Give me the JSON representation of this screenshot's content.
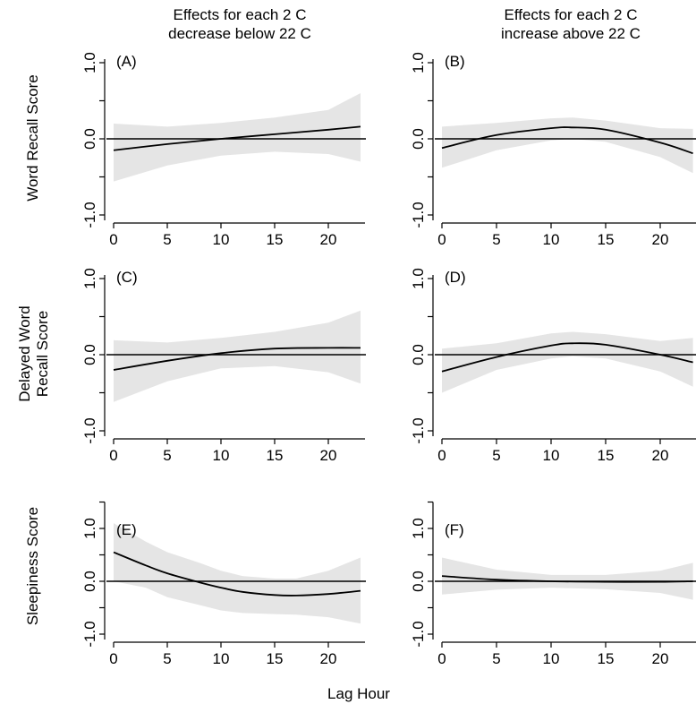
{
  "figure": {
    "column_titles": [
      "Effects for each 2 C\ndecrease below 22 C",
      "Effects for each 2 C\nincrease above 22 C"
    ],
    "row_labels": [
      [
        "Word Recall Score"
      ],
      [
        "Delayed Word",
        "Recall Score"
      ],
      [
        "Sleepiness Score"
      ]
    ],
    "x_axis_label": "Lag Hour"
  },
  "chart_data": [
    {
      "type": "line",
      "panel_label": "(A)",
      "x": [
        0,
        5,
        10,
        15,
        20,
        23
      ],
      "series": [
        {
          "role": "estimate",
          "values": [
            -0.15,
            -0.07,
            0.0,
            0.06,
            0.12,
            0.16
          ]
        },
        {
          "role": "ci_lower",
          "values": [
            -0.56,
            -0.35,
            -0.22,
            -0.17,
            -0.2,
            -0.3
          ]
        },
        {
          "role": "ci_upper",
          "values": [
            0.2,
            0.16,
            0.21,
            0.28,
            0.38,
            0.6
          ]
        }
      ],
      "x_ticks": [
        "0",
        "5",
        "10",
        "15",
        "20"
      ],
      "y_ticks": [
        "-1.0",
        "0.0",
        "1.0"
      ],
      "xlim": [
        0,
        23
      ],
      "ylim": [
        -1.0,
        1.0
      ],
      "reference_line": 0
    },
    {
      "type": "line",
      "panel_label": "(B)",
      "x": [
        0,
        5,
        10,
        12,
        15,
        20,
        23
      ],
      "series": [
        {
          "role": "estimate",
          "values": [
            -0.12,
            0.05,
            0.14,
            0.15,
            0.12,
            -0.05,
            -0.19
          ]
        },
        {
          "role": "ci_lower",
          "values": [
            -0.38,
            -0.15,
            -0.02,
            0.0,
            -0.04,
            -0.24,
            -0.45
          ]
        },
        {
          "role": "ci_upper",
          "values": [
            0.16,
            0.21,
            0.27,
            0.28,
            0.24,
            0.14,
            0.13
          ]
        }
      ],
      "x_ticks": [
        "0",
        "5",
        "10",
        "15",
        "20"
      ],
      "y_ticks": [
        "-1.0",
        "0.0",
        "1.0"
      ],
      "xlim": [
        0,
        23
      ],
      "ylim": [
        -1.0,
        1.0
      ],
      "reference_line": 0
    },
    {
      "type": "line",
      "panel_label": "(C)",
      "x": [
        0,
        5,
        10,
        15,
        20,
        23
      ],
      "series": [
        {
          "role": "estimate",
          "values": [
            -0.2,
            -0.08,
            0.02,
            0.08,
            0.09,
            0.09
          ]
        },
        {
          "role": "ci_lower",
          "values": [
            -0.62,
            -0.35,
            -0.18,
            -0.15,
            -0.23,
            -0.38
          ]
        },
        {
          "role": "ci_upper",
          "values": [
            0.19,
            0.16,
            0.22,
            0.3,
            0.42,
            0.58
          ]
        }
      ],
      "x_ticks": [
        "0",
        "5",
        "10",
        "15",
        "20"
      ],
      "y_ticks": [
        "-1.0",
        "0.0",
        "1.0"
      ],
      "xlim": [
        0,
        23
      ],
      "ylim": [
        -1.0,
        1.0
      ],
      "reference_line": 0
    },
    {
      "type": "line",
      "panel_label": "(D)",
      "x": [
        0,
        5,
        10,
        12,
        15,
        20,
        23
      ],
      "series": [
        {
          "role": "estimate",
          "values": [
            -0.22,
            -0.03,
            0.12,
            0.15,
            0.13,
            0.0,
            -0.1
          ]
        },
        {
          "role": "ci_lower",
          "values": [
            -0.5,
            -0.2,
            -0.05,
            -0.02,
            -0.05,
            -0.22,
            -0.42
          ]
        },
        {
          "role": "ci_upper",
          "values": [
            0.08,
            0.15,
            0.28,
            0.3,
            0.27,
            0.18,
            0.22
          ]
        }
      ],
      "x_ticks": [
        "0",
        "5",
        "10",
        "15",
        "20"
      ],
      "y_ticks": [
        "-1.0",
        "0.0",
        "1.0"
      ],
      "xlim": [
        0,
        23
      ],
      "ylim": [
        -1.0,
        1.0
      ],
      "reference_line": 0
    },
    {
      "type": "line",
      "panel_label": "(E)",
      "x": [
        0,
        3,
        5,
        8,
        10,
        12,
        15,
        17,
        20,
        23
      ],
      "series": [
        {
          "role": "estimate",
          "values": [
            0.55,
            0.3,
            0.15,
            -0.02,
            -0.12,
            -0.2,
            -0.26,
            -0.27,
            -0.24,
            -0.18
          ]
        },
        {
          "role": "ci_lower",
          "values": [
            0.0,
            -0.12,
            -0.3,
            -0.45,
            -0.55,
            -0.6,
            -0.62,
            -0.63,
            -0.68,
            -0.8
          ]
        },
        {
          "role": "ci_upper",
          "values": [
            1.1,
            0.75,
            0.55,
            0.35,
            0.2,
            0.1,
            0.05,
            0.05,
            0.2,
            0.45
          ]
        }
      ],
      "x_ticks": [
        "0",
        "5",
        "10",
        "15",
        "20"
      ],
      "y_ticks": [
        "-1.0",
        "0.0",
        "1.0"
      ],
      "xlim": [
        0,
        23
      ],
      "ylim": [
        -1.0,
        1.5
      ],
      "reference_line": 0
    },
    {
      "type": "line",
      "panel_label": "(F)",
      "x": [
        0,
        5,
        10,
        15,
        20,
        23
      ],
      "series": [
        {
          "role": "estimate",
          "values": [
            0.1,
            0.03,
            0.0,
            -0.01,
            -0.01,
            0.0
          ]
        },
        {
          "role": "ci_lower",
          "values": [
            -0.25,
            -0.16,
            -0.12,
            -0.15,
            -0.22,
            -0.35
          ]
        },
        {
          "role": "ci_upper",
          "values": [
            0.45,
            0.22,
            0.12,
            0.12,
            0.2,
            0.35
          ]
        }
      ],
      "x_ticks": [
        "0",
        "5",
        "10",
        "15",
        "20"
      ],
      "y_ticks": [
        "-1.0",
        "0.0",
        "1.0"
      ],
      "xlim": [
        0,
        23
      ],
      "ylim": [
        -1.0,
        1.5
      ],
      "reference_line": 0
    }
  ],
  "colors": {
    "ci_band": "#e5e5e5",
    "line": "#000000",
    "axis": "#000000"
  }
}
